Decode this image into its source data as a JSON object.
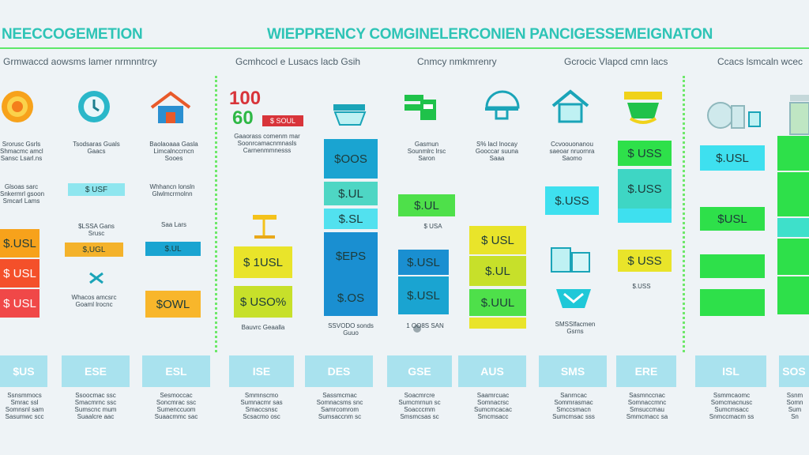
{
  "header": {
    "title_left": "NEECCOGEMETION",
    "title_right": "WIEPPRENCY COMGINELERCONIEN PANCIGESSEMEIGNATON"
  },
  "subtitles": [
    "Grmwaccd aowsms lamer nrmnntrcy",
    "Gcmhcocl e Lusacs lacb Gsih",
    "Cnmcy nmkmrenry",
    "Gcrocic Vlapcd cmn lacs",
    "Ccacs lsmcaln wcec"
  ],
  "icons": [
    "sun-coin-icon",
    "clock-icon",
    "house-icon",
    "toolbox-icon",
    "wallet-icon",
    "cloche-icon",
    "laptop-icon",
    "hat-icon",
    "basket-icon",
    "bucket-icon",
    "jars-icon",
    "mug-icon",
    "scale-icon",
    "calendar-icon",
    "watering-can-icon"
  ],
  "big_numbers": {
    "n1": "100",
    "n2": "60"
  },
  "blocks": {
    "a1": "$.USL",
    "a2": "$ USL",
    "a3": "$ USL",
    "b1": "$ USF",
    "c1": "$OWL",
    "d1": "$ 1USL",
    "d2": "$ USO%",
    "e1": "$OOS",
    "e2": "$.UL",
    "e3": "$.SL",
    "e4": "$EPS",
    "e5": "$.OS",
    "f1": "$ SOUL",
    "g1": "$.UL",
    "h1": "$.USL",
    "h2": "$.USL",
    "h3": "$ USL",
    "i1": "$,UGL",
    "i2": "$.UL",
    "j1": "$.UL",
    "j2": "$.UUL",
    "k1": "$.USS",
    "k2": "$ USS",
    "k3": "$.USS",
    "k4": "$ USS",
    "l1": "$.USL",
    "l2": "$USL"
  },
  "captions": {
    "col1": "Srorusc Gsrls\nShmacmc amcl\nSansc Lsarl.ns",
    "col1b": "Glsoas sarc\nSnkermrl gsoon\nSmcarl Lams",
    "col2": "Tsodsaras Guals\nGaacs",
    "col2b": "$LSSA Gans\nSrusc",
    "col2c": "Whacos amcsrc\nGoaml lrocnc",
    "col3": "Baolaoaaa Gasla\nLimcalnccrncn\nSooes",
    "col3b": "Whhancn lonsln\nGlwlmcrrnolnn",
    "col3c": "Saa Lars",
    "col4": "Gaaorass comenm mar\nSoonrcamacnmnasls\nCarnenmmnesss",
    "col5": "Bauvrc Geaalla",
    "col6": "SSVODO sonds\nGuuo",
    "col7": "Gasmun\nSounmlrc lrsc\nSaron",
    "col7b": "1 OO8S SAN",
    "col8": "S% lacl lnocay\nGooccar suuna\nSaaa",
    "col8b": "$ USA",
    "col9": "Ccvoouonanou\nsaeoar nruornra\nSaomo",
    "col9b": "SMSSlfacmen\nGsrns",
    "col10": "$.USS"
  },
  "cards": [
    "$US",
    "ESE",
    "ESL",
    "ISE",
    "DES",
    "GSE",
    "AUS",
    "SMS",
    "ERE",
    "ISL",
    "SOS"
  ],
  "card_texts": [
    "Ssnsmmocs\nSmrac ssl\nSomnsnl sam\nSasumwc scc",
    "Ssoocmac ssc\nSmacmrnc ssc\nSumscnc mum\nSuaalcre aac",
    "Sesmoccac\nSoncmrac ssc\nSumenccuom\nSuaacmmc sac",
    "Smmnscmo\nSumnacmr sas\nSmaccsnsc\nScsacmo osc",
    "Sassmcmac\nSomnacsms snc\nSamrcomrom\nSumsaccnm sc",
    "Soacmrcre\nSumcmrnun sc\nSoacccmm\nSmsmcsas sc",
    "Saamrcuac\nSomnacrsc\nSumcmcacac\nSmcmsacc",
    "Sanrncac\nSommrasmac\nSmccsmacn\nSumcmsac sss",
    "Sasmnccnac\nSomnaccmnc\nSmsuccmau\nSmmcmacc sa",
    "Ssmmcaomc\nSomcmacnusc\nSumcmsacc\nSnmccmacm ss",
    "Ssnm\nSomn\nSum\nSn"
  ]
}
